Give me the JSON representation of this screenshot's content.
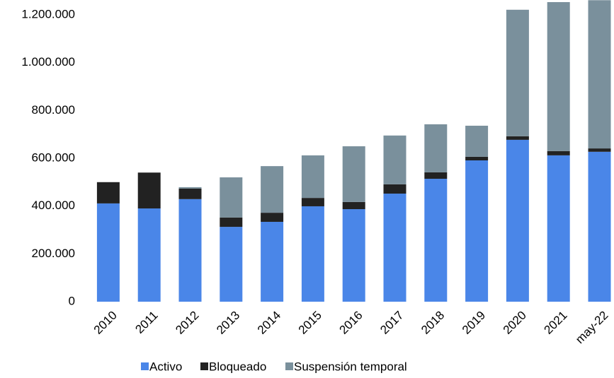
{
  "chart_data": {
    "type": "stacked_bar",
    "categories": [
      "2010",
      "2011",
      "2012",
      "2013",
      "2014",
      "2015",
      "2016",
      "2017",
      "2018",
      "2019",
      "2020",
      "2021",
      "may-22"
    ],
    "series": [
      {
        "name": "Activo",
        "color": "#4a86e8",
        "values": [
          411000,
          390000,
          429000,
          313000,
          334000,
          399000,
          387000,
          452000,
          514000,
          591000,
          677000,
          612000,
          627000
        ]
      },
      {
        "name": "Bloqueado",
        "color": "#222222",
        "values": [
          89000,
          150000,
          44000,
          39000,
          38000,
          35000,
          30000,
          39000,
          27000,
          15000,
          15000,
          18000,
          14000
        ]
      },
      {
        "name": "Suspensión temporal",
        "color": "#7a909c",
        "values": [
          0,
          0,
          6000,
          168000,
          195000,
          178000,
          233000,
          204000,
          201000,
          130000,
          529000,
          623000,
          620000
        ]
      }
    ],
    "ylim": [
      0,
      1260000
    ],
    "yticks": [
      0,
      {
        "value": 200000,
        "label": "200.000"
      },
      {
        "value": 400000,
        "label": "400.000"
      },
      {
        "value": 600000,
        "label": "600.000"
      },
      {
        "value": 800000,
        "label": "800.000"
      },
      {
        "value": 1000000,
        "label": "1.000.000"
      },
      {
        "value": 1200000,
        "label": "1.200.000"
      }
    ],
    "legend": "bottom"
  }
}
